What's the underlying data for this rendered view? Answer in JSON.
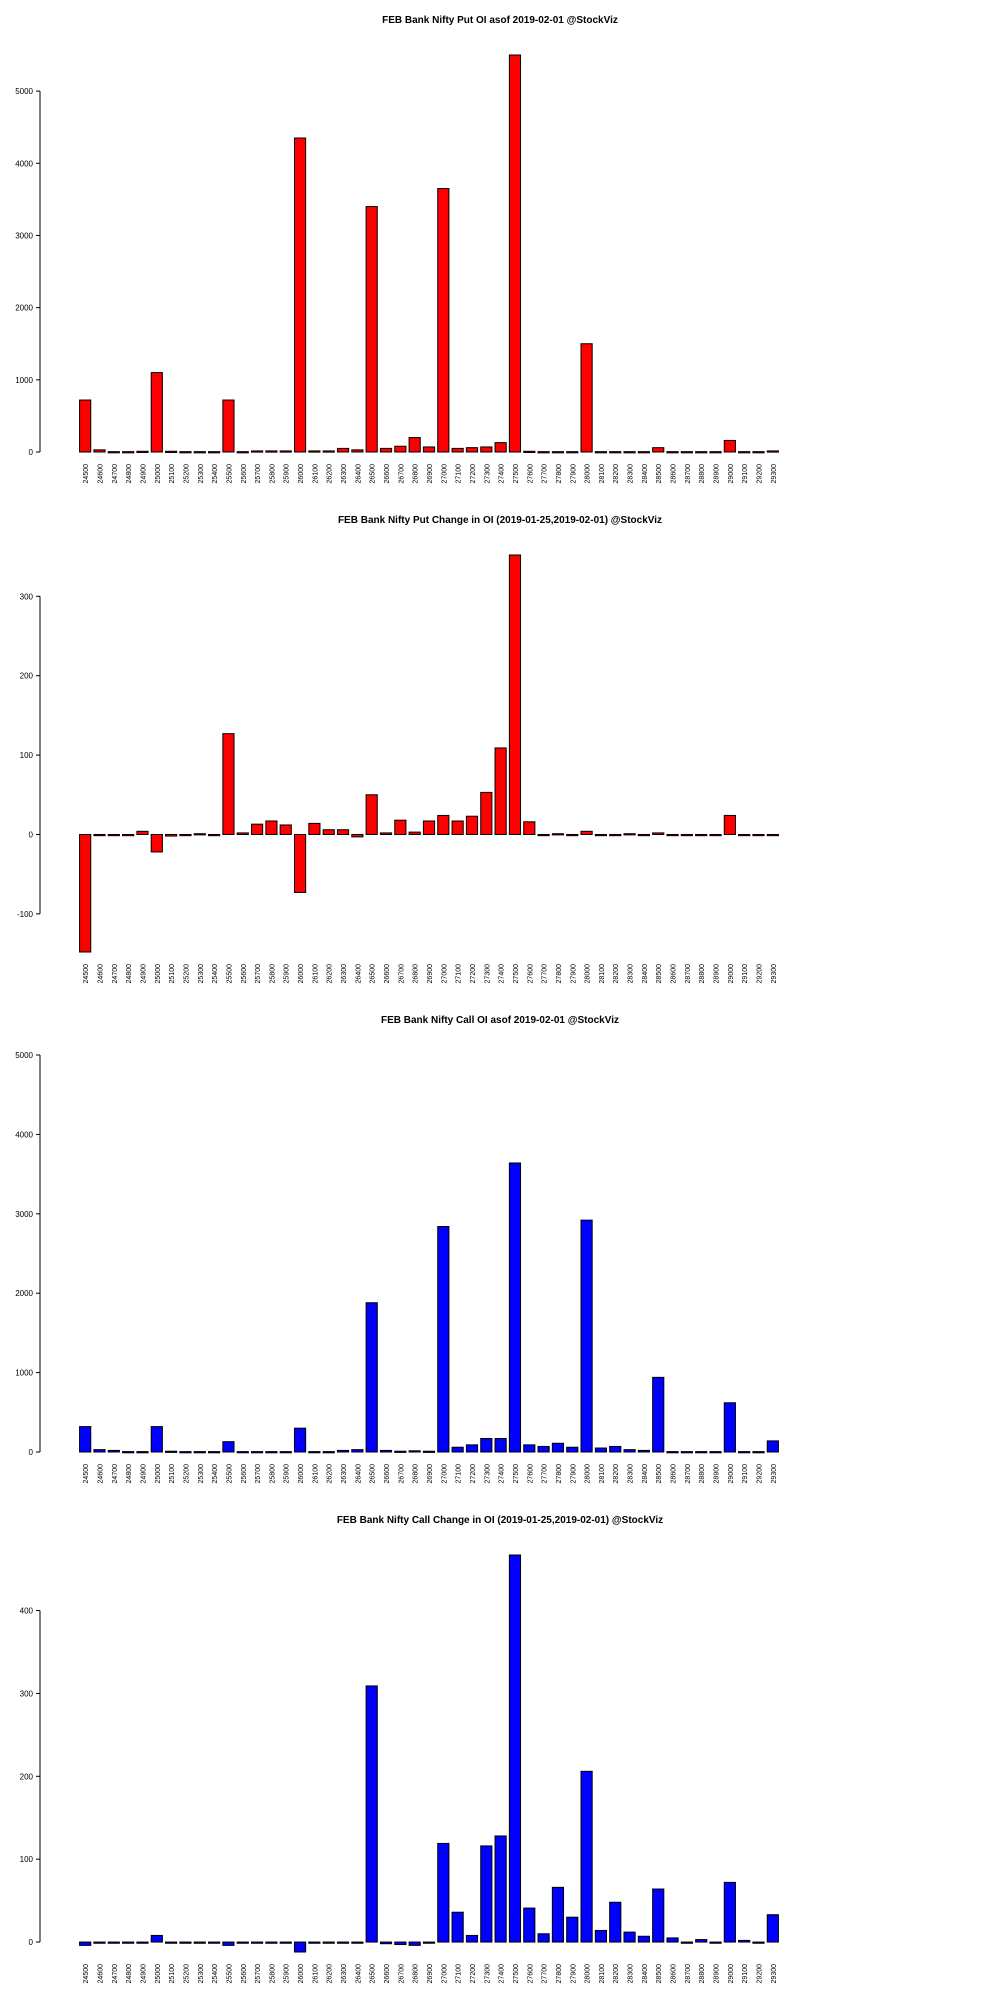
{
  "chart_data": [
    {
      "type": "bar",
      "title": "FEB Bank Nifty Put OI asof 2019-02-01 @StockViz",
      "categories": [
        "24500",
        "24600",
        "24700",
        "24800",
        "24900",
        "25000",
        "25100",
        "25200",
        "25300",
        "25400",
        "25500",
        "25600",
        "25700",
        "25800",
        "25900",
        "26000",
        "26100",
        "26200",
        "26300",
        "26400",
        "26500",
        "26600",
        "26700",
        "26800",
        "26900",
        "27000",
        "27100",
        "27200",
        "27300",
        "27400",
        "27500",
        "27600",
        "27700",
        "27800",
        "27900",
        "28000",
        "28100",
        "28200",
        "28300",
        "28400",
        "28500",
        "28600",
        "28700",
        "28800",
        "28900",
        "29000",
        "29100",
        "29200",
        "29300"
      ],
      "values": [
        720,
        30,
        5,
        5,
        10,
        1100,
        10,
        5,
        5,
        5,
        720,
        5,
        15,
        15,
        15,
        4350,
        15,
        15,
        50,
        30,
        3400,
        50,
        80,
        200,
        70,
        3650,
        50,
        60,
        70,
        130,
        5500,
        10,
        5,
        5,
        5,
        1500,
        5,
        5,
        5,
        5,
        60,
        5,
        5,
        5,
        5,
        160,
        5,
        5,
        15
      ],
      "yticks": [
        0,
        1000,
        2000,
        3000,
        4000,
        5000
      ],
      "ylim": [
        0,
        5500
      ],
      "color": "#ff0000"
    },
    {
      "type": "bar",
      "title": "FEB Bank Nifty Put Change in OI (2019-01-25,2019-02-01) @StockViz",
      "categories": [
        "24500",
        "24600",
        "24700",
        "24800",
        "24900",
        "25000",
        "25100",
        "25200",
        "25300",
        "25400",
        "25500",
        "25600",
        "25700",
        "25800",
        "25900",
        "26000",
        "26100",
        "26200",
        "26300",
        "26400",
        "26500",
        "26600",
        "26700",
        "26800",
        "26900",
        "27000",
        "27100",
        "27200",
        "27300",
        "27400",
        "27500",
        "27600",
        "27700",
        "27800",
        "27900",
        "28000",
        "28100",
        "28200",
        "28300",
        "28400",
        "28500",
        "28600",
        "28700",
        "28800",
        "28900",
        "29000",
        "29100",
        "29200",
        "29300"
      ],
      "values": [
        -148,
        -1,
        -1,
        -1,
        4,
        -22,
        -2,
        0,
        1,
        0,
        127,
        2,
        13,
        17,
        12,
        -73,
        14,
        6,
        6,
        -3,
        50,
        2,
        18,
        3,
        17,
        24,
        17,
        23,
        53,
        109,
        352,
        16,
        0,
        1,
        0,
        4,
        0,
        0,
        1,
        0,
        2,
        0,
        0,
        0,
        0,
        24,
        0,
        0,
        0
      ],
      "yticks": [
        -100,
        0,
        100,
        200,
        300
      ],
      "ylim": [
        -148,
        352
      ],
      "color": "#ff0000"
    },
    {
      "type": "bar",
      "title": "FEB Bank Nifty Call OI asof 2019-02-01 @StockViz",
      "categories": [
        "24500",
        "24600",
        "24700",
        "24800",
        "24900",
        "25000",
        "25100",
        "25200",
        "25300",
        "25400",
        "25500",
        "25600",
        "25700",
        "25800",
        "25900",
        "26000",
        "26100",
        "26200",
        "26300",
        "26400",
        "26500",
        "26600",
        "26700",
        "26800",
        "26900",
        "27000",
        "27100",
        "27200",
        "27300",
        "27400",
        "27500",
        "27600",
        "27700",
        "27800",
        "27900",
        "28000",
        "28100",
        "28200",
        "28300",
        "28400",
        "28500",
        "28600",
        "28700",
        "28800",
        "28900",
        "29000",
        "29100",
        "29200",
        "29300"
      ],
      "values": [
        320,
        30,
        20,
        5,
        5,
        320,
        10,
        5,
        5,
        5,
        130,
        5,
        5,
        5,
        5,
        300,
        5,
        5,
        20,
        30,
        1880,
        20,
        10,
        15,
        10,
        2840,
        60,
        90,
        170,
        170,
        3640,
        90,
        70,
        110,
        60,
        2920,
        50,
        70,
        30,
        20,
        940,
        5,
        5,
        5,
        5,
        620,
        5,
        5,
        140
      ],
      "yticks": [
        0,
        1000,
        2000,
        3000,
        4000,
        5000
      ],
      "ylim": [
        0,
        5000
      ],
      "color": "#0000ff"
    },
    {
      "type": "bar",
      "title": "FEB Bank Nifty Call Change in OI (2019-01-25,2019-02-01) @StockViz",
      "categories": [
        "24500",
        "24600",
        "24700",
        "24800",
        "24900",
        "25000",
        "25100",
        "25200",
        "25300",
        "25400",
        "25500",
        "25600",
        "25700",
        "25800",
        "25900",
        "26000",
        "26100",
        "26200",
        "26300",
        "26400",
        "26500",
        "26600",
        "26700",
        "26800",
        "26900",
        "27000",
        "27100",
        "27200",
        "27300",
        "27400",
        "27500",
        "27600",
        "27700",
        "27800",
        "27900",
        "28000",
        "28100",
        "28200",
        "28300",
        "28400",
        "28500",
        "28600",
        "28700",
        "28800",
        "28900",
        "29000",
        "29100",
        "29200",
        "29300"
      ],
      "values": [
        -4,
        -1,
        -1,
        -1,
        -1,
        8,
        -1,
        -1,
        -1,
        -1,
        -4,
        -1,
        -1,
        -1,
        -1,
        -12,
        -1,
        -1,
        -1,
        -1,
        309,
        -2,
        -3,
        -4,
        -1,
        119,
        36,
        8,
        116,
        128,
        467,
        41,
        10,
        66,
        30,
        206,
        14,
        48,
        12,
        7,
        64,
        5,
        -1,
        3,
        -1,
        72,
        2,
        -1,
        33
      ],
      "yticks": [
        0,
        100,
        200,
        300,
        400
      ],
      "ylim": [
        -12,
        467
      ],
      "color": "#0000ff"
    }
  ]
}
